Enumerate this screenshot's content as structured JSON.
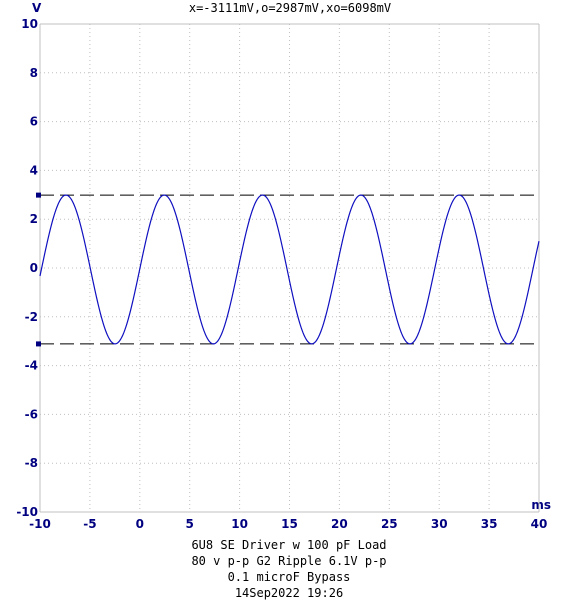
{
  "chart_data": {
    "type": "line",
    "readout": "x=-3111mV,o=2987mV,xo=6098mV",
    "x_unit": "ms",
    "y_unit": "V",
    "xlim": [
      -10,
      40
    ],
    "ylim": [
      -10,
      10
    ],
    "x_ticks": [
      "-10",
      "-5",
      "0",
      "5",
      "10",
      "15",
      "20",
      "25",
      "30",
      "35",
      "40"
    ],
    "y_ticks": [
      "10",
      "8",
      "6",
      "4",
      "2",
      "0",
      "-2",
      "-4",
      "-6",
      "-8",
      "-10"
    ],
    "grid": true,
    "cursors": [
      {
        "label": "o",
        "value": 2.987
      },
      {
        "label": "x",
        "value": -3.111
      }
    ],
    "series": [
      {
        "color": "#1010c0",
        "waveform": "sine",
        "amplitude_v": 3.05,
        "offset_v": -0.06,
        "period_ms": 9.85,
        "first_peak_ms": -7.4,
        "x_start": -10,
        "x_end": 40
      }
    ],
    "caption": [
      "6U8 SE Driver w 100 pF Load",
      "80 v p-p G2 Ripple 6.1V p-p",
      "0.1 microF Bypass",
      "14Sep2022  19:26"
    ]
  },
  "colors": {
    "axis_text": "#000080",
    "grid": "#c0c0c0",
    "trace": "#1010c0",
    "cursor": "#000000",
    "cursor_marker": "#000080"
  }
}
